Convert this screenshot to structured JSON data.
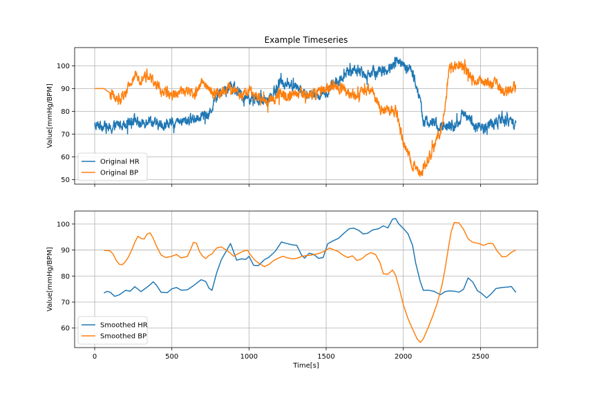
{
  "chart_data": [
    {
      "type": "line",
      "title": "Example Timeseries",
      "xlabel": "",
      "ylabel": "Value[mmHg/BPM]",
      "xlim": [
        -130,
        2870
      ],
      "ylim": [
        48,
        108
      ],
      "xticks": [
        0,
        500,
        1000,
        1500,
        2000,
        2500
      ],
      "xtick_labels_visible": false,
      "yticks": [
        50,
        60,
        70,
        80,
        90,
        100
      ],
      "grid": true,
      "legend_position": "lower-left",
      "noise": 2.2,
      "series": [
        {
          "name": "Original HR",
          "color": "#1f77b4",
          "x": [
            0,
            30,
            60,
            100,
            150,
            200,
            250,
            300,
            350,
            400,
            450,
            500,
            550,
            600,
            650,
            700,
            730,
            760,
            800,
            850,
            880,
            900,
            950,
            1000,
            1050,
            1100,
            1150,
            1200,
            1250,
            1300,
            1350,
            1400,
            1450,
            1500,
            1550,
            1600,
            1650,
            1700,
            1750,
            1800,
            1850,
            1900,
            1950,
            2000,
            2050,
            2080,
            2100,
            2130,
            2150,
            2200,
            2250,
            2300,
            2350,
            2400,
            2450,
            2500,
            2550,
            2600,
            2650,
            2700,
            2730
          ],
          "y": [
            73,
            74,
            74,
            72,
            74,
            75,
            77,
            74,
            77,
            74,
            74,
            75,
            75,
            76,
            77,
            79,
            77,
            82,
            88,
            90,
            92,
            90,
            87,
            86,
            85,
            84,
            86,
            93,
            92,
            91,
            88,
            87,
            87,
            88,
            92,
            94,
            98,
            98,
            96,
            97,
            98,
            98,
            102,
            100,
            98,
            93,
            88,
            76,
            75,
            75,
            73,
            74,
            74,
            80,
            75,
            72,
            74,
            75,
            77,
            75,
            73
          ]
        },
        {
          "name": "Original BP",
          "color": "#ff7f0e",
          "x": [
            0,
            30,
            60,
            100,
            150,
            180,
            200,
            250,
            300,
            350,
            400,
            450,
            500,
            550,
            600,
            650,
            700,
            750,
            800,
            850,
            900,
            950,
            1000,
            1050,
            1100,
            1150,
            1200,
            1250,
            1300,
            1350,
            1400,
            1450,
            1500,
            1550,
            1600,
            1650,
            1700,
            1750,
            1800,
            1850,
            1900,
            1950,
            2000,
            2050,
            2100,
            2120,
            2150,
            2200,
            2250,
            2270,
            2300,
            2350,
            2400,
            2450,
            2500,
            2550,
            2600,
            2650,
            2700,
            2730
          ],
          "y": [
            90,
            90,
            90,
            88,
            84,
            86,
            87,
            95,
            95,
            96,
            91,
            88,
            88,
            88,
            89,
            87,
            94,
            88,
            88,
            90,
            89,
            87,
            89,
            86,
            84,
            85,
            88,
            87,
            87,
            88,
            87,
            88,
            90,
            91,
            90,
            88,
            87,
            89,
            90,
            80,
            81,
            80,
            66,
            58,
            54,
            53,
            58,
            65,
            73,
            82,
            99,
            101,
            100,
            94,
            93,
            92,
            92,
            88,
            89,
            91
          ]
        }
      ]
    },
    {
      "type": "line",
      "title": "",
      "xlabel": "Time[s]",
      "ylabel": "Value[mmHg/BPM]",
      "xlim": [
        -130,
        2870
      ],
      "ylim": [
        52.5,
        105
      ],
      "xticks": [
        0,
        500,
        1000,
        1500,
        2000,
        2500
      ],
      "xtick_labels_visible": true,
      "yticks": [
        60,
        70,
        80,
        90,
        100
      ],
      "grid": true,
      "legend_position": "lower-left",
      "noise": 0,
      "series": [
        {
          "name": "Smoothed HR",
          "color": "#1f77b4",
          "x": [
            60,
            80,
            100,
            130,
            160,
            200,
            230,
            260,
            300,
            350,
            380,
            400,
            430,
            470,
            500,
            530,
            560,
            600,
            640,
            690,
            720,
            740,
            760,
            790,
            820,
            860,
            880,
            900,
            920,
            950,
            980,
            1000,
            1030,
            1060,
            1100,
            1130,
            1170,
            1210,
            1240,
            1280,
            1310,
            1340,
            1360,
            1390,
            1420,
            1450,
            1480,
            1510,
            1540,
            1580,
            1620,
            1650,
            1680,
            1710,
            1740,
            1770,
            1800,
            1840,
            1870,
            1900,
            1930,
            1950,
            1970,
            2000,
            2030,
            2060,
            2080,
            2110,
            2130,
            2160,
            2200,
            2240,
            2270,
            2300,
            2330,
            2360,
            2390,
            2420,
            2450,
            2480,
            2510,
            2540,
            2570,
            2600,
            2640,
            2680,
            2700,
            2730
          ],
          "y": [
            73.5,
            74.1,
            73.8,
            72.2,
            72.8,
            74.5,
            74.2,
            75.9,
            74.0,
            76.2,
            77.8,
            76.5,
            73.8,
            73.6,
            75.1,
            75.6,
            74.6,
            74.7,
            76.3,
            78.6,
            77.9,
            75.4,
            74.5,
            81.2,
            86.2,
            90.4,
            92.5,
            89.4,
            86.1,
            86.6,
            86.4,
            87.6,
            84.1,
            84.0,
            86.3,
            87.3,
            89.5,
            93.1,
            92.6,
            92.0,
            91.8,
            88.1,
            86.9,
            88.8,
            88.3,
            86.8,
            87.1,
            92.4,
            93.4,
            94.5,
            96.7,
            98.2,
            98.4,
            97.6,
            96.2,
            96.5,
            97.7,
            98.2,
            99.3,
            98.5,
            101.9,
            102.1,
            100.1,
            98.3,
            96.3,
            91.8,
            85.0,
            77.8,
            74.5,
            74.6,
            74.1,
            72.8,
            74.0,
            74.3,
            74.2,
            73.8,
            74.9,
            79.3,
            77.7,
            74.4,
            73.2,
            71.6,
            73.2,
            75.2,
            75.6,
            75.8,
            76.0,
            73.7
          ]
        },
        {
          "name": "Smoothed BP",
          "color": "#ff7f0e",
          "x": [
            60,
            80,
            100,
            120,
            140,
            160,
            180,
            200,
            220,
            240,
            260,
            280,
            300,
            320,
            340,
            360,
            380,
            400,
            430,
            460,
            500,
            530,
            560,
            600,
            620,
            640,
            660,
            680,
            700,
            720,
            740,
            760,
            790,
            820,
            850,
            880,
            900,
            930,
            960,
            990,
            1010,
            1040,
            1070,
            1100,
            1130,
            1160,
            1190,
            1220,
            1250,
            1280,
            1310,
            1340,
            1370,
            1400,
            1430,
            1460,
            1490,
            1520,
            1550,
            1580,
            1610,
            1640,
            1670,
            1700,
            1730,
            1760,
            1790,
            1820,
            1850,
            1870,
            1900,
            1930,
            1950,
            1980,
            2000,
            2030,
            2060,
            2090,
            2110,
            2130,
            2160,
            2190,
            2220,
            2250,
            2270,
            2290,
            2310,
            2330,
            2360,
            2390,
            2420,
            2450,
            2490,
            2520,
            2550,
            2580,
            2610,
            2640,
            2670,
            2700,
            2730
          ],
          "y": [
            89.8,
            89.8,
            89.7,
            88.4,
            86.0,
            84.5,
            84.4,
            85.6,
            87.5,
            90.0,
            93.0,
            95.3,
            94.5,
            94.2,
            96.2,
            96.6,
            94.4,
            91.5,
            88.1,
            87.1,
            87.6,
            88.3,
            87.0,
            87.5,
            90.0,
            93.0,
            92.6,
            89.3,
            87.6,
            86.7,
            87.9,
            88.5,
            90.8,
            91.2,
            90.1,
            88.8,
            87.6,
            88.6,
            89.5,
            90.0,
            88.1,
            86.0,
            84.7,
            83.6,
            84.5,
            86.0,
            86.9,
            87.6,
            87.0,
            86.6,
            86.8,
            87.5,
            87.9,
            88.0,
            88.4,
            88.8,
            89.6,
            90.8,
            90.1,
            89.4,
            88.0,
            87.1,
            87.8,
            86.0,
            86.6,
            88.1,
            89.0,
            88.3,
            85.0,
            80.9,
            80.7,
            82.3,
            80.4,
            73.9,
            69.0,
            63.7,
            59.6,
            55.8,
            54.5,
            55.9,
            60.0,
            64.5,
            69.6,
            76.3,
            82.6,
            90.1,
            97.0,
            100.6,
            100.5,
            98.0,
            94.3,
            93.0,
            92.5,
            91.8,
            92.5,
            92.5,
            89.5,
            87.4,
            87.6,
            89.1,
            90.1
          ]
        }
      ]
    }
  ]
}
